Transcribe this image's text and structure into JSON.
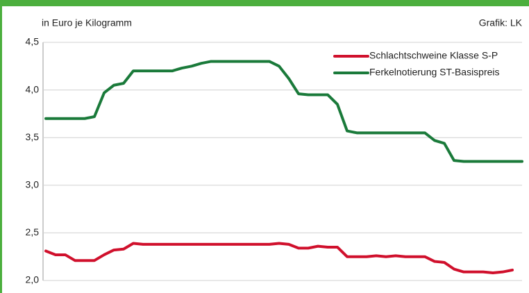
{
  "chart_data": {
    "type": "line",
    "subtitle": "in Euro je Kilogramm",
    "source": "Grafik: LK",
    "categories": [
      null,
      null,
      null,
      null,
      null,
      null,
      null,
      null,
      null,
      null,
      null,
      null,
      null,
      null,
      null,
      null,
      null,
      null,
      null,
      null,
      null,
      null,
      null,
      null,
      null,
      null,
      null,
      null,
      null,
      null,
      null,
      null,
      null,
      null,
      null,
      null,
      null,
      null,
      null,
      null,
      null,
      null,
      null,
      null,
      null,
      null,
      null,
      null,
      null,
      null
    ],
    "series": [
      {
        "name": "Schlachtschweine Klasse S-P",
        "color": "#d0102c",
        "values": [
          2.31,
          2.27,
          2.27,
          2.21,
          2.21,
          2.21,
          2.27,
          2.32,
          2.33,
          2.39,
          2.38,
          2.38,
          2.38,
          2.38,
          2.38,
          2.38,
          2.38,
          2.38,
          2.38,
          2.38,
          2.38,
          2.38,
          2.38,
          2.38,
          2.39,
          2.38,
          2.34,
          2.34,
          2.36,
          2.35,
          2.35,
          2.25,
          2.25,
          2.25,
          2.26,
          2.25,
          2.26,
          2.25,
          2.25,
          2.25,
          2.2,
          2.19,
          2.12,
          2.09,
          2.09,
          2.09,
          2.08,
          2.09,
          2.11,
          null
        ]
      },
      {
        "name": "Ferkelnotierung ST-Basispreis",
        "color": "#1a7a3a",
        "values": [
          3.7,
          3.7,
          3.7,
          3.7,
          3.7,
          3.72,
          3.97,
          4.05,
          4.07,
          4.2,
          4.2,
          4.2,
          4.2,
          4.2,
          4.23,
          4.25,
          4.28,
          4.3,
          4.3,
          4.3,
          4.3,
          4.3,
          4.3,
          4.3,
          4.25,
          4.12,
          3.96,
          3.95,
          3.95,
          3.95,
          3.85,
          3.57,
          3.55,
          3.55,
          3.55,
          3.55,
          3.55,
          3.55,
          3.55,
          3.55,
          3.47,
          3.44,
          3.26,
          3.25,
          3.25,
          3.25,
          3.25,
          3.25,
          3.25,
          3.25
        ]
      }
    ],
    "ylim": [
      2,
      4.5
    ],
    "yticks": [
      {
        "value": 2,
        "label": "2,0"
      },
      {
        "value": 2.5,
        "label": "2,5"
      },
      {
        "value": 3,
        "label": "3,0"
      },
      {
        "value": 3.5,
        "label": "3,5"
      },
      {
        "value": 4,
        "label": "4,0"
      },
      {
        "value": 4.5,
        "label": "4,5"
      }
    ],
    "grid": true
  }
}
